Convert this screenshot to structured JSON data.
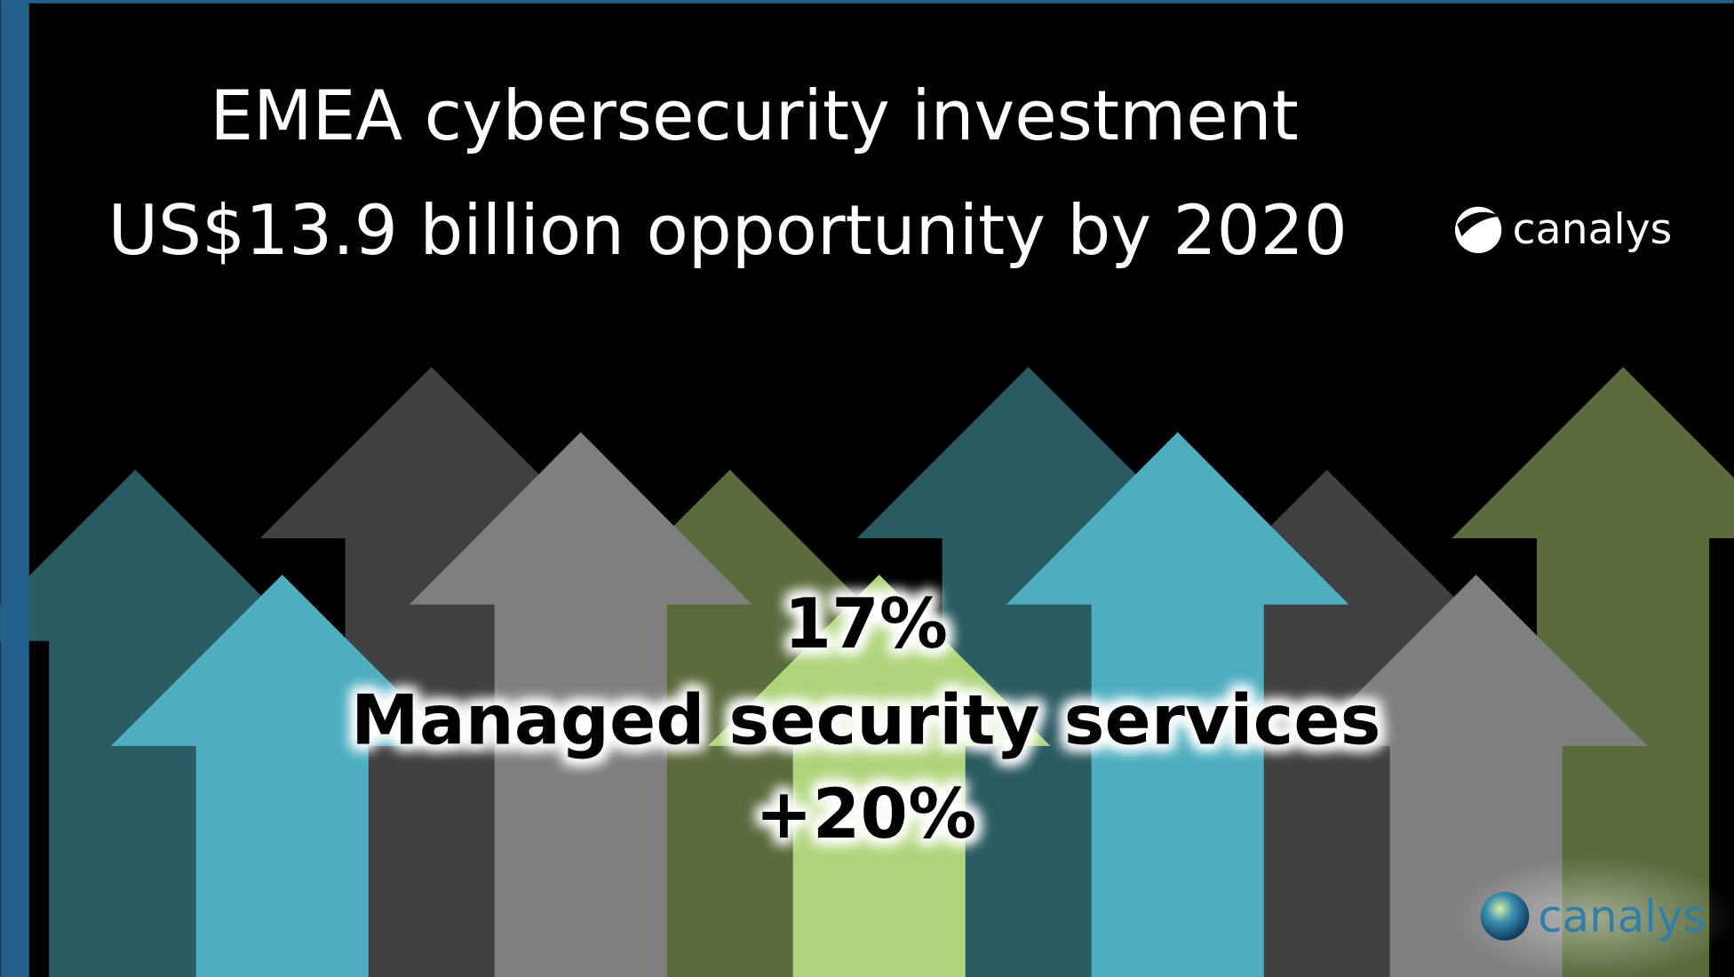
{
  "header": {
    "title_line1": "EMEA cybersecurity investment",
    "title_line2": "US$13.9 billion opportunity by 2020"
  },
  "logo": {
    "text": "canalys"
  },
  "highlight": {
    "share": "17%",
    "label": "Managed security services",
    "growth": "+20%"
  },
  "watermark": {
    "text": "canalys"
  }
}
